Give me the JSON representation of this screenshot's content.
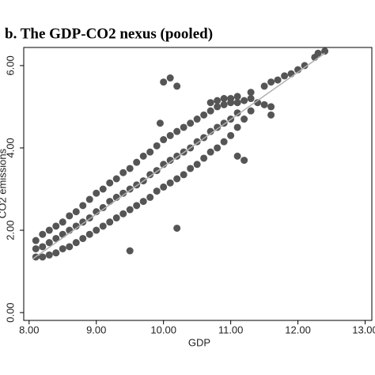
{
  "chart_data": {
    "type": "scatter",
    "title": "b.   The GDP-CO2 nexus (pooled)",
    "xlabel": "GDP",
    "ylabel": "CO2 emissions",
    "xlim": [
      7.92,
      13.1
    ],
    "ylim": [
      -0.19,
      6.44
    ],
    "xticks": [
      {
        "value": 8,
        "label": "8.00"
      },
      {
        "value": 9,
        "label": "9.00"
      },
      {
        "value": 10,
        "label": "10.00"
      },
      {
        "value": 11,
        "label": "11.00"
      },
      {
        "value": 12,
        "label": "12.00"
      },
      {
        "value": 13,
        "label": "13.00"
      }
    ],
    "yticks": [
      {
        "value": 0,
        "label": "0.00"
      },
      {
        "value": 2,
        "label": "2.00"
      },
      {
        "value": 4,
        "label": "4.00"
      },
      {
        "value": 6,
        "label": "6.00"
      }
    ],
    "series": [
      {
        "type": "scatter",
        "color": "#555555",
        "x": [
          8.1,
          8.1,
          8.1,
          8.2,
          8.2,
          8.2,
          8.3,
          8.3,
          8.3,
          8.4,
          8.4,
          8.4,
          8.5,
          8.5,
          8.5,
          8.6,
          8.6,
          8.6,
          8.7,
          8.7,
          8.7,
          8.8,
          8.8,
          8.8,
          8.9,
          8.9,
          8.9,
          9.0,
          9.0,
          9.0,
          9.1,
          9.1,
          9.1,
          9.2,
          9.2,
          9.2,
          9.3,
          9.3,
          9.3,
          9.4,
          9.4,
          9.4,
          9.5,
          9.5,
          9.5,
          9.6,
          9.6,
          9.6,
          9.7,
          9.7,
          9.7,
          9.8,
          9.8,
          9.8,
          9.9,
          9.9,
          9.9,
          10.0,
          10.0,
          10.0,
          10.1,
          10.1,
          10.1,
          10.2,
          10.2,
          10.2,
          10.3,
          10.3,
          10.3,
          10.4,
          10.4,
          10.4,
          10.5,
          10.5,
          10.5,
          10.6,
          10.6,
          10.6,
          10.7,
          10.7,
          10.7,
          10.8,
          10.8,
          10.8,
          10.9,
          10.9,
          10.9,
          11.0,
          11.0,
          11.0,
          11.1,
          11.1,
          11.1,
          11.2,
          11.2,
          11.3,
          11.3,
          11.4,
          11.5,
          11.6,
          10.7,
          10.8,
          10.9,
          11.0,
          11.1,
          11.3,
          11.5,
          11.7,
          11.9,
          12.1,
          12.25,
          12.4,
          12.3,
          12.0,
          11.8,
          11.6,
          10.0,
          10.1,
          10.2,
          9.95,
          9.5,
          10.2,
          11.1,
          11.2,
          11.6
        ],
        "y": [
          1.75,
          1.35,
          1.55,
          1.9,
          1.35,
          1.6,
          2.0,
          1.4,
          1.7,
          2.1,
          1.45,
          1.8,
          2.2,
          1.55,
          1.9,
          2.35,
          1.6,
          2.0,
          2.45,
          1.7,
          2.1,
          2.6,
          1.8,
          2.2,
          2.75,
          1.9,
          2.3,
          2.9,
          2.0,
          2.45,
          3.0,
          2.1,
          2.55,
          3.15,
          2.2,
          2.7,
          3.25,
          2.3,
          2.8,
          3.4,
          2.4,
          2.9,
          3.5,
          2.5,
          3.0,
          3.65,
          2.6,
          3.1,
          3.8,
          2.7,
          3.2,
          3.9,
          2.8,
          3.35,
          4.05,
          2.95,
          3.45,
          4.2,
          3.05,
          3.6,
          4.3,
          3.15,
          3.7,
          4.4,
          3.25,
          3.8,
          4.5,
          3.35,
          3.9,
          4.6,
          3.5,
          4.0,
          4.7,
          3.6,
          4.15,
          4.8,
          3.75,
          4.25,
          4.9,
          3.9,
          4.4,
          5.0,
          4.0,
          4.5,
          5.05,
          4.15,
          4.6,
          5.1,
          4.3,
          4.7,
          5.1,
          4.5,
          4.85,
          5.15,
          4.7,
          5.2,
          4.9,
          5.1,
          5.05,
          5.0,
          5.1,
          5.15,
          5.2,
          5.2,
          5.25,
          5.35,
          5.5,
          5.65,
          5.8,
          6.0,
          6.2,
          6.35,
          6.3,
          5.9,
          5.75,
          5.6,
          5.6,
          5.7,
          5.5,
          4.6,
          1.5,
          2.05,
          3.8,
          3.7,
          4.8
        ]
      },
      {
        "type": "line",
        "color": "#b0b0b0",
        "x": [
          8.05,
          12.4
        ],
        "y": [
          1.3,
          6.3
        ]
      }
    ]
  }
}
